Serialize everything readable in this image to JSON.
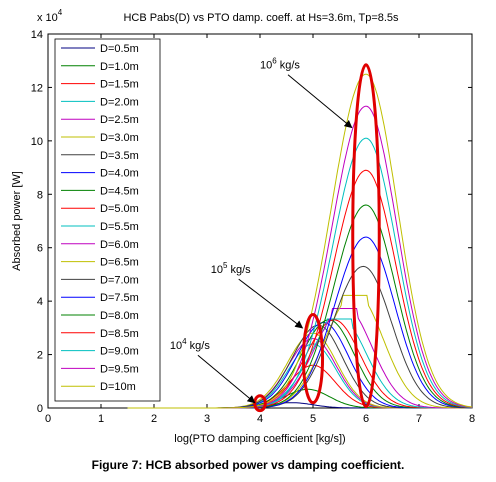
{
  "figure": {
    "caption": "Figure 7: HCB absorbed power vs damping coefficient."
  },
  "chart_data": {
    "type": "line",
    "title": "HCB Pabs(D) vs PTO damp. coeff. at Hs=3.6m, Tp=8.5s",
    "xlabel": "log(PTO damping coefficient [kg/s])",
    "ylabel": "Absorbed power [W]",
    "y_multiplier": "x 10",
    "y_multiplier_exp": "4",
    "xlim": [
      0,
      8
    ],
    "ylim": [
      0,
      14
    ],
    "xticks": [
      0,
      1,
      2,
      3,
      4,
      5,
      6,
      7,
      8
    ],
    "yticks": [
      0,
      2,
      4,
      6,
      8,
      10,
      12,
      14
    ],
    "xtick_labels": [
      "0",
      "1",
      "2",
      "3",
      "4",
      "5",
      "6",
      "7",
      "8"
    ],
    "ytick_labels": [
      "0",
      "2",
      "4",
      "6",
      "8",
      "10",
      "12",
      "14"
    ],
    "legend_position": "upper-left",
    "series": [
      {
        "name": "D=0.5m",
        "color": "#000080",
        "peak_x": 4.6,
        "peak_y": 0.2
      },
      {
        "name": "D=1.0m",
        "color": "#008000",
        "peak_x": 4.9,
        "peak_y": 0.7
      },
      {
        "name": "D=1.5m",
        "color": "#ff0000",
        "peak_x": 5.0,
        "peak_y": 1.6
      },
      {
        "name": "D=2.0m",
        "color": "#00bfbf",
        "peak_x": 5.0,
        "peak_y": 2.4
      },
      {
        "name": "D=2.5m",
        "color": "#bf00bf",
        "peak_x": 5.0,
        "peak_y": 2.6
      },
      {
        "name": "D=3.0m",
        "color": "#bfbf00",
        "peak_x": 5.0,
        "peak_y": 2.8
      },
      {
        "name": "D=3.5m",
        "color": "#404040",
        "peak_x": 5.1,
        "peak_y": 3.1
      },
      {
        "name": "D=4.0m",
        "color": "#0000ff",
        "peak_x": 5.2,
        "peak_y": 3.2
      },
      {
        "name": "D=4.5m",
        "color": "#008000",
        "peak_x": 5.3,
        "peak_y": 3.3
      },
      {
        "name": "D=5.0m",
        "color": "#ff0000",
        "peak_x": 5.4,
        "peak_y": 3.3
      },
      {
        "name": "D=5.5m",
        "color": "#00bfbf",
        "peak_x": 5.5,
        "peak_y": 3.4
      },
      {
        "name": "D=6.0m",
        "color": "#bf00bf",
        "peak_x": 5.6,
        "peak_y": 3.8
      },
      {
        "name": "D=6.5m",
        "color": "#bfbf00",
        "peak_x": 5.8,
        "peak_y": 4.3
      },
      {
        "name": "D=7.0m",
        "color": "#404040",
        "peak_x": 5.95,
        "peak_y": 5.3
      },
      {
        "name": "D=7.5m",
        "color": "#0000ff",
        "peak_x": 6.0,
        "peak_y": 6.4
      },
      {
        "name": "D=8.0m",
        "color": "#008000",
        "peak_x": 6.0,
        "peak_y": 7.6
      },
      {
        "name": "D=8.5m",
        "color": "#ff0000",
        "peak_x": 6.0,
        "peak_y": 8.9
      },
      {
        "name": "D=9.0m",
        "color": "#00bfbf",
        "peak_x": 6.0,
        "peak_y": 10.1
      },
      {
        "name": "D=9.5m",
        "color": "#bf00bf",
        "peak_x": 6.0,
        "peak_y": 11.3
      },
      {
        "name": "D=10m",
        "color": "#bfbf00",
        "peak_x": 6.0,
        "peak_y": 12.5
      }
    ],
    "annotations": [
      {
        "text": "10",
        "sup": "6",
        "unit": " kg/s",
        "tx": 4.0,
        "ty": 12.7,
        "ax": 5.73,
        "ay": 10.5
      },
      {
        "text": "10",
        "sup": "5",
        "unit": " kg/s",
        "tx": 3.07,
        "ty": 5.05,
        "ax": 4.8,
        "ay": 3.0
      },
      {
        "text": "10",
        "sup": "4",
        "unit": " kg/s",
        "tx": 2.3,
        "ty": 2.2,
        "ax": 3.9,
        "ay": 0.2
      }
    ],
    "highlights": [
      {
        "cx": 6.0,
        "cy": 6.45,
        "rx": 0.25,
        "ry": 6.4
      },
      {
        "cx": 5.0,
        "cy": 1.85,
        "rx": 0.18,
        "ry": 1.65
      },
      {
        "cx": 4.0,
        "cy": 0.18,
        "rx": 0.1,
        "ry": 0.28
      }
    ]
  }
}
